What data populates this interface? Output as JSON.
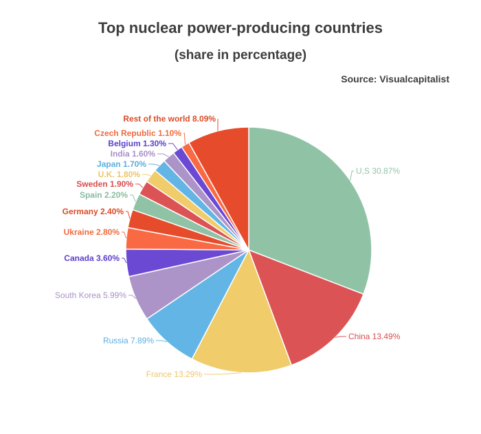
{
  "header": {
    "title": "Top nuclear power-producing countries",
    "subtitle": "(share in percentage)",
    "source": "Source: Visualcapitalist"
  },
  "chart_data": {
    "type": "pie",
    "title": "Top nuclear power-producing countries",
    "subtitle": "(share in percentage)",
    "start": "top, clockwise",
    "slices": [
      {
        "label": "U,S",
        "value": 30.87,
        "text": "U,S 30.87%",
        "color": "#90c3a6",
        "text_color": "#90c3a6",
        "bold": false
      },
      {
        "label": "China",
        "value": 13.49,
        "text": "China 13.49%",
        "color": "#dc5355",
        "text_color": "#d94b4f",
        "bold": false
      },
      {
        "label": "France",
        "value": 13.29,
        "text": "France 13.29%",
        "color": "#f0cc6b",
        "text_color": "#eec56a",
        "bold": false
      },
      {
        "label": "Russia",
        "value": 7.89,
        "text": "Russia 7.89%",
        "color": "#63b5e5",
        "text_color": "#5aaede",
        "bold": false
      },
      {
        "label": "South Korea",
        "value": 5.99,
        "text": "South Korea 5.99%",
        "color": "#ad94c8",
        "text_color": "#a98fc8",
        "bold": false
      },
      {
        "label": "Canada",
        "value": 3.6,
        "text": "Canada 3.60%",
        "color": "#6c49d3",
        "text_color": "#5b3fcd",
        "bold": true
      },
      {
        "label": "Ukraine",
        "value": 2.8,
        "text": "Ukraine 2.80%",
        "color": "#f96a44",
        "text_color": "#f06a3e",
        "bold": true
      },
      {
        "label": "Germany",
        "value": 2.4,
        "text": "Germany 2.40%",
        "color": "#e64c2b",
        "text_color": "#dd4a26",
        "bold": true
      },
      {
        "label": "Spain",
        "value": 2.2,
        "text": "Spain 2.20%",
        "color": "#90c3a6",
        "text_color": "#88bc9e",
        "bold": true
      },
      {
        "label": "Sweden",
        "value": 1.9,
        "text": "Sweden 1.90%",
        "color": "#dc5355",
        "text_color": "#d94b4f",
        "bold": true
      },
      {
        "label": "U.K.",
        "value": 1.8,
        "text": "U.K. 1.80%",
        "color": "#f0cc6b",
        "text_color": "#eec56a",
        "bold": true
      },
      {
        "label": "Japan",
        "value": 1.7,
        "text": "Japan 1.70%",
        "color": "#63b5e5",
        "text_color": "#5aaede",
        "bold": true
      },
      {
        "label": "India",
        "value": 1.6,
        "text": "India 1.60%",
        "color": "#ad94c8",
        "text_color": "#a98fc8",
        "bold": true
      },
      {
        "label": "Belgium",
        "value": 1.3,
        "text": "Belgium 1.30%",
        "color": "#6c49d3",
        "text_color": "#5b3fcd",
        "bold": true
      },
      {
        "label": "Czech Republic",
        "value": 1.1,
        "text": "Czech Republic 1.10%",
        "color": "#f96a44",
        "text_color": "#f06a3e",
        "bold": true
      },
      {
        "label": "Rest of the world",
        "value": 8.09,
        "text": "Rest of the world 8.09%",
        "color": "#e64c2b",
        "text_color": "#dd4a26",
        "bold": true
      }
    ]
  }
}
